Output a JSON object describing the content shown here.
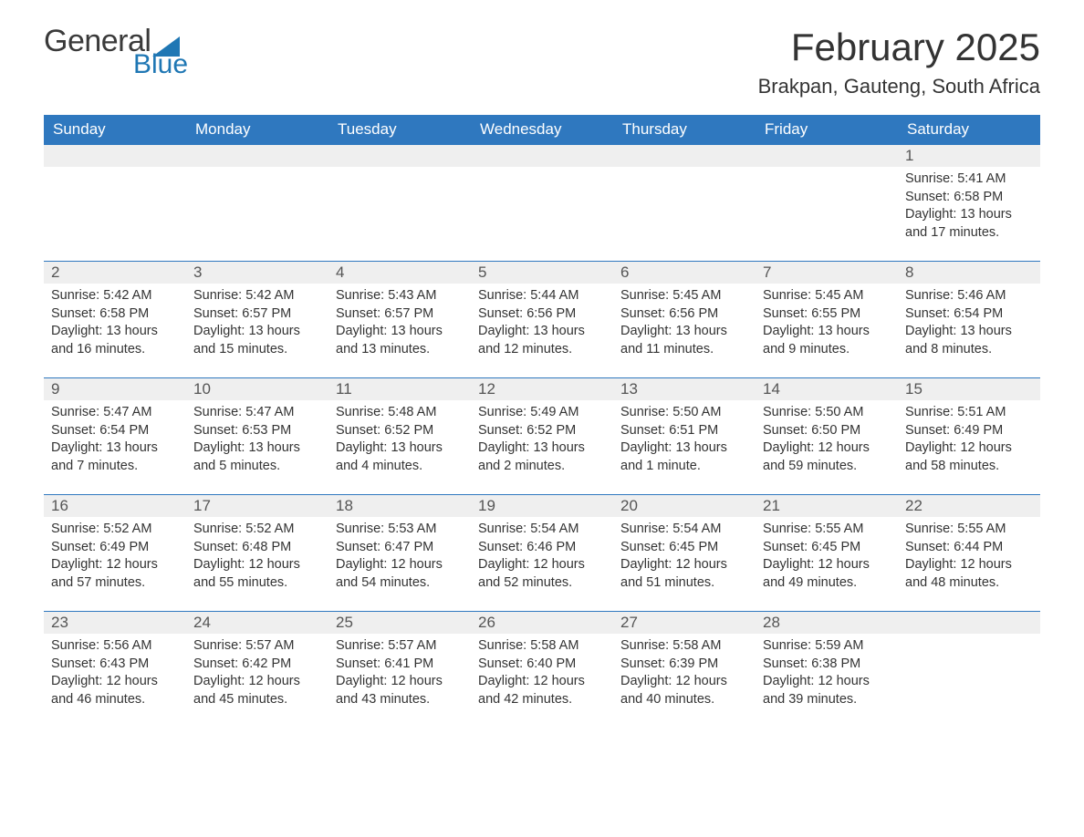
{
  "logo": {
    "word1": "General",
    "word2": "Blue",
    "tri_color": "#1f77b4",
    "text_gray": "#3a3a3a"
  },
  "title": "February 2025",
  "location": "Brakpan, Gauteng, South Africa",
  "colors": {
    "header_bg": "#2f78bf",
    "header_text": "#ffffff",
    "week_border": "#2f78bf",
    "daynum_bg": "#efefef",
    "body_text": "#333333",
    "page_bg": "#ffffff"
  },
  "fonts": {
    "title_size": 42,
    "location_size": 22,
    "th_size": 17,
    "daynum_size": 17,
    "body_size": 14.5
  },
  "day_labels": [
    "Sunday",
    "Monday",
    "Tuesday",
    "Wednesday",
    "Thursday",
    "Friday",
    "Saturday"
  ],
  "labels": {
    "sunrise": "Sunrise:",
    "sunset": "Sunset:",
    "daylight": "Daylight:"
  },
  "weeks": [
    [
      null,
      null,
      null,
      null,
      null,
      null,
      {
        "n": "1",
        "sunrise": "5:41 AM",
        "sunset": "6:58 PM",
        "daylight": "13 hours and 17 minutes."
      }
    ],
    [
      {
        "n": "2",
        "sunrise": "5:42 AM",
        "sunset": "6:58 PM",
        "daylight": "13 hours and 16 minutes."
      },
      {
        "n": "3",
        "sunrise": "5:42 AM",
        "sunset": "6:57 PM",
        "daylight": "13 hours and 15 minutes."
      },
      {
        "n": "4",
        "sunrise": "5:43 AM",
        "sunset": "6:57 PM",
        "daylight": "13 hours and 13 minutes."
      },
      {
        "n": "5",
        "sunrise": "5:44 AM",
        "sunset": "6:56 PM",
        "daylight": "13 hours and 12 minutes."
      },
      {
        "n": "6",
        "sunrise": "5:45 AM",
        "sunset": "6:56 PM",
        "daylight": "13 hours and 11 minutes."
      },
      {
        "n": "7",
        "sunrise": "5:45 AM",
        "sunset": "6:55 PM",
        "daylight": "13 hours and 9 minutes."
      },
      {
        "n": "8",
        "sunrise": "5:46 AM",
        "sunset": "6:54 PM",
        "daylight": "13 hours and 8 minutes."
      }
    ],
    [
      {
        "n": "9",
        "sunrise": "5:47 AM",
        "sunset": "6:54 PM",
        "daylight": "13 hours and 7 minutes."
      },
      {
        "n": "10",
        "sunrise": "5:47 AM",
        "sunset": "6:53 PM",
        "daylight": "13 hours and 5 minutes."
      },
      {
        "n": "11",
        "sunrise": "5:48 AM",
        "sunset": "6:52 PM",
        "daylight": "13 hours and 4 minutes."
      },
      {
        "n": "12",
        "sunrise": "5:49 AM",
        "sunset": "6:52 PM",
        "daylight": "13 hours and 2 minutes."
      },
      {
        "n": "13",
        "sunrise": "5:50 AM",
        "sunset": "6:51 PM",
        "daylight": "13 hours and 1 minute."
      },
      {
        "n": "14",
        "sunrise": "5:50 AM",
        "sunset": "6:50 PM",
        "daylight": "12 hours and 59 minutes."
      },
      {
        "n": "15",
        "sunrise": "5:51 AM",
        "sunset": "6:49 PM",
        "daylight": "12 hours and 58 minutes."
      }
    ],
    [
      {
        "n": "16",
        "sunrise": "5:52 AM",
        "sunset": "6:49 PM",
        "daylight": "12 hours and 57 minutes."
      },
      {
        "n": "17",
        "sunrise": "5:52 AM",
        "sunset": "6:48 PM",
        "daylight": "12 hours and 55 minutes."
      },
      {
        "n": "18",
        "sunrise": "5:53 AM",
        "sunset": "6:47 PM",
        "daylight": "12 hours and 54 minutes."
      },
      {
        "n": "19",
        "sunrise": "5:54 AM",
        "sunset": "6:46 PM",
        "daylight": "12 hours and 52 minutes."
      },
      {
        "n": "20",
        "sunrise": "5:54 AM",
        "sunset": "6:45 PM",
        "daylight": "12 hours and 51 minutes."
      },
      {
        "n": "21",
        "sunrise": "5:55 AM",
        "sunset": "6:45 PM",
        "daylight": "12 hours and 49 minutes."
      },
      {
        "n": "22",
        "sunrise": "5:55 AM",
        "sunset": "6:44 PM",
        "daylight": "12 hours and 48 minutes."
      }
    ],
    [
      {
        "n": "23",
        "sunrise": "5:56 AM",
        "sunset": "6:43 PM",
        "daylight": "12 hours and 46 minutes."
      },
      {
        "n": "24",
        "sunrise": "5:57 AM",
        "sunset": "6:42 PM",
        "daylight": "12 hours and 45 minutes."
      },
      {
        "n": "25",
        "sunrise": "5:57 AM",
        "sunset": "6:41 PM",
        "daylight": "12 hours and 43 minutes."
      },
      {
        "n": "26",
        "sunrise": "5:58 AM",
        "sunset": "6:40 PM",
        "daylight": "12 hours and 42 minutes."
      },
      {
        "n": "27",
        "sunrise": "5:58 AM",
        "sunset": "6:39 PM",
        "daylight": "12 hours and 40 minutes."
      },
      {
        "n": "28",
        "sunrise": "5:59 AM",
        "sunset": "6:38 PM",
        "daylight": "12 hours and 39 minutes."
      },
      null
    ]
  ]
}
